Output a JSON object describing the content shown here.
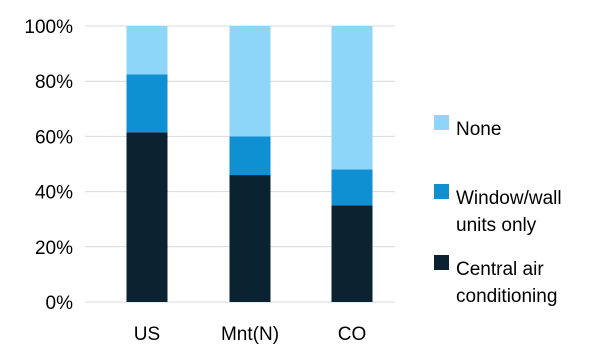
{
  "chart_data": {
    "type": "bar",
    "stacked": true,
    "percent": true,
    "categories": [
      "US",
      "Mnt(N)",
      "CO"
    ],
    "series": [
      {
        "name": "Central air conditioning",
        "values": [
          61.5,
          46,
          35
        ],
        "color": "#0b2230"
      },
      {
        "name": "Window/wall units only",
        "values": [
          21,
          14,
          13
        ],
        "color": "#0f90d3"
      },
      {
        "name": "None",
        "values": [
          17.5,
          40,
          52
        ],
        "color": "#8dd5f9"
      }
    ],
    "y_ticks": [
      "0%",
      "20%",
      "40%",
      "60%",
      "80%",
      "100%"
    ],
    "ylim": [
      0,
      100
    ],
    "legend": {
      "placement": "right",
      "entries": [
        {
          "series": "None",
          "lines": [
            "None"
          ]
        },
        {
          "series": "Window/wall units only",
          "lines": [
            "Window/wall",
            "units only"
          ]
        },
        {
          "series": "Central air conditioning",
          "lines": [
            "Central air",
            "conditioning"
          ]
        }
      ]
    },
    "grid": true,
    "title": "",
    "xlabel": "",
    "ylabel": ""
  }
}
